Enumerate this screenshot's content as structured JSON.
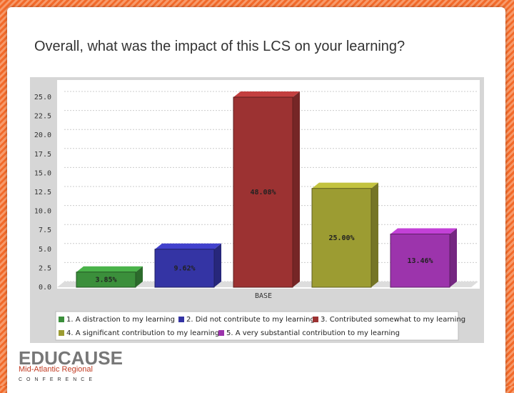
{
  "title": "Overall, what was the impact of this LCS on your learning?",
  "chart_data": {
    "type": "bar",
    "categories": [
      "BASE"
    ],
    "series": [
      {
        "name": "1. A distraction to my learning",
        "color": "#3b8f3b",
        "values": [
          2
        ],
        "data_labels": [
          "3.85%"
        ]
      },
      {
        "name": "2. Did not contribute to my learning",
        "color": "#3434a4",
        "values": [
          5
        ],
        "data_labels": [
          "9.62%"
        ]
      },
      {
        "name": "3. Contributed somewhat to my learning",
        "color": "#9c3232",
        "values": [
          25
        ],
        "data_labels": [
          "48.08%"
        ]
      },
      {
        "name": "4. A significant contribution to my learning",
        "color": "#9c9c32",
        "values": [
          13
        ],
        "data_labels": [
          "25.00%"
        ]
      },
      {
        "name": "5. A very substantial contribution to my learning",
        "color": "#9c34ac",
        "values": [
          7
        ],
        "data_labels": [
          "13.46%"
        ]
      }
    ],
    "ylim": [
      0,
      25
    ],
    "yticks": [
      {
        "value": 0,
        "label": "0.0"
      },
      2.5,
      {
        "value": 5,
        "label": "5.0"
      },
      7.5,
      {
        "value": 10,
        "label": "10.0"
      },
      12.5,
      {
        "value": 15,
        "label": "15.0"
      },
      17.5,
      {
        "value": 20,
        "label": "20.0"
      },
      22.5,
      {
        "value": 25,
        "label": "25.0"
      }
    ],
    "grid": true
  },
  "logo": {
    "name": "EDUCAUSE",
    "region": "Mid-Atlantic Regional",
    "event": "CONFERENCE"
  }
}
